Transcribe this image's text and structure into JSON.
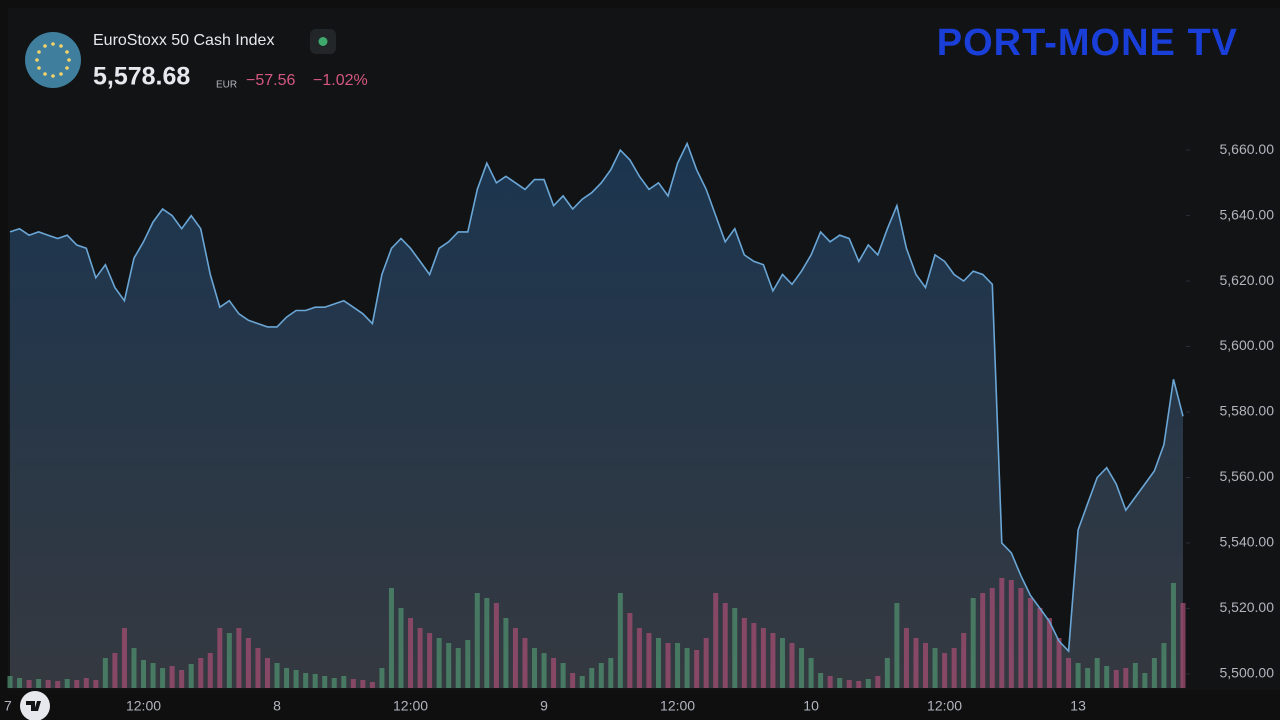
{
  "chart_data": {
    "type": "line",
    "title": "EuroStoxx 50 Cash Index",
    "price": "5,578.68",
    "currency": "EUR",
    "change": "−57.56",
    "change_percent": "−1.02%",
    "brand": "PORT-MONE TV",
    "categories": [
      "7",
      null,
      null,
      null,
      null,
      null,
      null,
      null,
      null,
      null,
      null,
      null,
      null,
      null,
      "12:00",
      null,
      null,
      null,
      null,
      null,
      null,
      null,
      null,
      null,
      null,
      null,
      null,
      null,
      "8",
      null,
      null,
      null,
      null,
      null,
      null,
      null,
      null,
      null,
      null,
      null,
      null,
      null,
      "12:00",
      null,
      null,
      null,
      null,
      null,
      null,
      null,
      null,
      null,
      null,
      null,
      null,
      null,
      "9",
      null,
      null,
      null,
      null,
      null,
      null,
      null,
      null,
      null,
      null,
      null,
      null,
      null,
      "12:00",
      null,
      null,
      null,
      null,
      null,
      null,
      null,
      null,
      null,
      null,
      null,
      null,
      null,
      "10",
      null,
      null,
      null,
      null,
      null,
      null,
      null,
      null,
      null,
      null,
      null,
      null,
      null,
      "12:00",
      null,
      null,
      null,
      null,
      null,
      null,
      null,
      null,
      null,
      null,
      null,
      null,
      null,
      "13",
      null,
      null,
      null,
      null,
      null,
      null,
      null,
      null,
      null,
      null,
      null
    ],
    "series": [
      {
        "name": "Price",
        "color": "#6aa6d6",
        "values": [
          5635,
          5636,
          5634,
          5635,
          5634,
          5633,
          5634,
          5631,
          5630,
          5621,
          5625,
          5618,
          5614,
          5627,
          5632,
          5638,
          5642,
          5640,
          5636,
          5640,
          5636,
          5622,
          5612,
          5614,
          5610,
          5608,
          5607,
          5606,
          5606,
          5609,
          5611,
          5611,
          5612,
          5612,
          5613,
          5614,
          5612,
          5610,
          5607,
          5622,
          5630,
          5633,
          5630,
          5626,
          5622,
          5630,
          5632,
          5635,
          5635,
          5648,
          5656,
          5650,
          5652,
          5650,
          5648,
          5651,
          5651,
          5643,
          5646,
          5642,
          5645,
          5647,
          5650,
          5654,
          5660,
          5657,
          5652,
          5648,
          5650,
          5646,
          5656,
          5662,
          5654,
          5648,
          5640,
          5632,
          5636,
          5628,
          5626,
          5625,
          5617,
          5622,
          5619,
          5623,
          5628,
          5635,
          5632,
          5634,
          5633,
          5626,
          5631,
          5628,
          5636,
          5643,
          5630,
          5622,
          5618,
          5628,
          5626,
          5622,
          5620,
          5623,
          5622,
          5619,
          5540,
          5537,
          5530,
          5524,
          5520,
          5516,
          5510,
          5507,
          5544,
          5552,
          5560,
          5563,
          5558,
          5550,
          5554,
          5558,
          5562,
          5570,
          5590,
          5578.68
        ]
      },
      {
        "name": "Volume",
        "up_color": "#4f8f6e",
        "down_color": "#a34d72",
        "values": [
          12,
          10,
          8,
          9,
          8,
          7,
          9,
          8,
          10,
          8,
          30,
          35,
          60,
          40,
          28,
          25,
          20,
          22,
          18,
          24,
          30,
          35,
          60,
          55,
          60,
          50,
          40,
          30,
          25,
          20,
          18,
          15,
          14,
          12,
          10,
          12,
          9,
          8,
          6,
          20,
          100,
          80,
          70,
          60,
          55,
          50,
          45,
          40,
          48,
          95,
          90,
          85,
          70,
          60,
          50,
          40,
          35,
          30,
          25,
          15,
          12,
          20,
          25,
          30,
          95,
          75,
          60,
          55,
          50,
          45,
          45,
          40,
          38,
          50,
          95,
          85,
          80,
          70,
          65,
          60,
          55,
          50,
          45,
          40,
          30,
          15,
          12,
          10,
          8,
          7,
          9,
          12,
          30,
          85,
          60,
          50,
          45,
          40,
          35,
          40,
          55,
          90,
          95,
          100,
          110,
          108,
          100,
          90,
          80,
          70,
          50,
          30,
          25,
          20,
          30,
          22,
          18,
          20,
          25,
          15,
          30,
          45,
          105,
          85
        ]
      }
    ],
    "ylim": [
      5495.7,
      5703.4
    ],
    "yticks": [
      {
        "value": 5500,
        "label": "5,500.00"
      },
      {
        "value": 5520,
        "label": "5,520.00"
      },
      {
        "value": 5540,
        "label": "5,540.00"
      },
      {
        "value": 5560,
        "label": "5,560.00"
      },
      {
        "value": 5580,
        "label": "5,580.00"
      },
      {
        "value": 5600,
        "label": "5,600.00"
      },
      {
        "value": 5620,
        "label": "5,620.00"
      },
      {
        "value": 5640,
        "label": "5,640.00"
      },
      {
        "value": 5660,
        "label": "5,660.00"
      }
    ],
    "grid": false
  }
}
